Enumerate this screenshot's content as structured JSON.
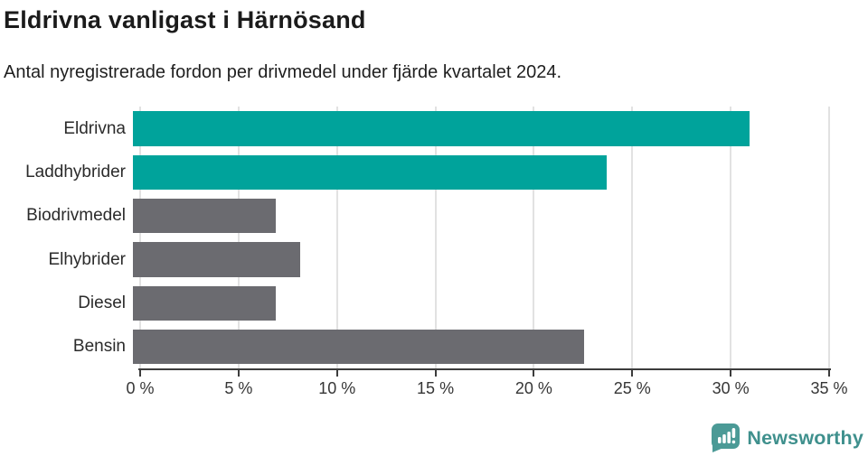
{
  "title": "Eldrivna vanligast i Härnösand",
  "subtitle": "Antal nyregistrerade fordon per drivmedel under fjärde kvartalet 2024.",
  "chart_data": {
    "type": "bar",
    "orientation": "horizontal",
    "title": "Eldrivna vanligast i Härnösand",
    "subtitle": "Antal nyregistrerade fordon per drivmedel under fjärde kvartalet 2024.",
    "categories": [
      "Eldrivna",
      "Laddhybrider",
      "Biodrivmedel",
      "Elhybrider",
      "Diesel",
      "Bensin"
    ],
    "values": [
      31.0,
      23.8,
      7.2,
      8.4,
      7.2,
      22.7
    ],
    "unit": "%",
    "bar_colors": [
      "#00a39b",
      "#00a39b",
      "#6b6b70",
      "#6b6b70",
      "#6b6b70",
      "#6b6b70"
    ],
    "xlabel": "",
    "ylabel": "",
    "xlim": [
      0,
      35
    ],
    "x_ticks": [
      0,
      5,
      10,
      15,
      20,
      25,
      30,
      35
    ],
    "x_tick_labels": [
      "0 %",
      "5 %",
      "10 %",
      "15 %",
      "20 %",
      "25 %",
      "30 %",
      "35 %"
    ],
    "grid": "vertical",
    "legend": "none"
  },
  "branding": {
    "logo_text": "Newsworthy",
    "logo_icon": "speech-bubble-bar-chart-icon",
    "logo_text_color": "#3f908d",
    "logo_bubble_color": "#4b9a96"
  },
  "colors": {
    "accent_teal": "#00a39b",
    "neutral_gray": "#6b6b70",
    "gridline": "#e2e2e2",
    "axis": "#3c3c3c",
    "title_text": "#1b1b1b"
  }
}
